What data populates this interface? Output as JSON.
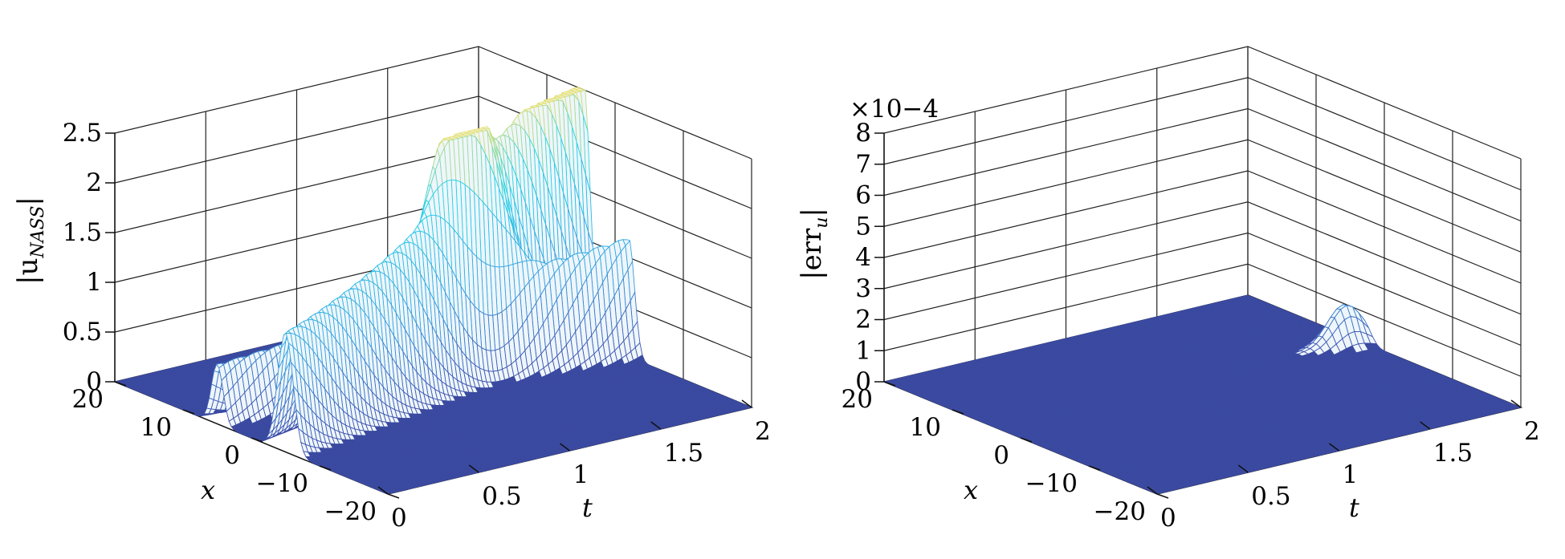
{
  "chart_data": [
    {
      "type": "surface",
      "zlabel": {
        "main": "|u",
        "sub": "NASS",
        "close": "|"
      },
      "xlabel": "t",
      "ylabel": "x",
      "xlim": [
        0,
        2
      ],
      "ylim": [
        -20,
        20
      ],
      "zlim": [
        0,
        2.5
      ],
      "xticks": [
        "0",
        "0.5",
        "1",
        "1.5",
        "2"
      ],
      "yticks": [
        "−20",
        "−10",
        "0",
        "10",
        "20"
      ],
      "zticks": [
        "0",
        "0.5",
        "1",
        "1.5",
        "2",
        "2.5"
      ],
      "grid": true,
      "surface": {
        "description_values": {
          "background_level": 0,
          "main_ridge": {
            "x_at_t0": -5,
            "x_at_t2": 5,
            "height_at_t0": 1.2,
            "height_at_t2": 2.5
          },
          "second_ridge": {
            "x_at_t0": 5,
            "x_at_t2": -2,
            "height_at_t0": 0.6,
            "height_at_t2": 1.2
          }
        }
      }
    },
    {
      "type": "surface",
      "zlabel": {
        "main": "|err",
        "sub": "u",
        "close": "|"
      },
      "xlabel": "t",
      "ylabel": "x",
      "xlim": [
        0,
        2
      ],
      "ylim": [
        -20,
        20
      ],
      "zlim": [
        0,
        8
      ],
      "scale_label": "×10−4",
      "xticks": [
        "0",
        "0.5",
        "1",
        "1.5",
        "2"
      ],
      "yticks": [
        "−20",
        "−10",
        "0",
        "10",
        "20"
      ],
      "zticks": [
        "0",
        "1",
        "2",
        "3",
        "4",
        "5",
        "6",
        "7",
        "8"
      ],
      "grid": true,
      "surface": {
        "description_values": {
          "background_level": 0,
          "peak_t": 1.9,
          "peak_x": 3,
          "peak_height": 1.2
        }
      }
    }
  ],
  "colors": {
    "floor": "#3b4aa0",
    "low": "#3f55b3",
    "mid": "#3aa0e0",
    "high": "#27d3e8",
    "peak": "#e8e06a"
  }
}
